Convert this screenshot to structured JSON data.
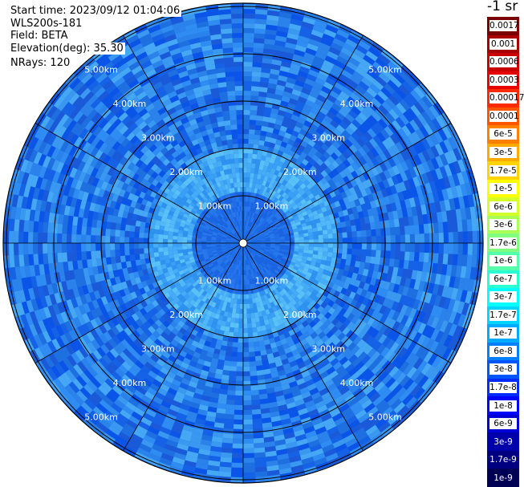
{
  "header": {
    "start_time": "Start time: 2023/09/12 01:04:06",
    "instrument": "WLS200s-181",
    "field": "Field: BETA",
    "elevation": "Elevation(deg): 35.30",
    "nrays": "NRays: 120"
  },
  "plot": {
    "range_labels": [
      "1.00km",
      "2.00km",
      "3.00km",
      "4.00km",
      "5.00km"
    ],
    "background_color": "#1e6fe0"
  },
  "colorbar": {
    "unit": "-1 sr",
    "entries": [
      {
        "label": "0.0017",
        "color": "#7a0000"
      },
      {
        "label": "0.001",
        "color": "#a80000"
      },
      {
        "label": "0.0006",
        "color": "#c80000"
      },
      {
        "label": "0.0003",
        "color": "#e80000"
      },
      {
        "label": "0.00017",
        "color": "#ff2a00"
      },
      {
        "label": "0.0001",
        "color": "#ff5500"
      },
      {
        "label": "6e-5",
        "color": "#ff8000"
      },
      {
        "label": "3e-5",
        "color": "#ffaa00"
      },
      {
        "label": "1.7e-5",
        "color": "#ffd400"
      },
      {
        "label": "1e-5",
        "color": "#ffff00"
      },
      {
        "label": "6e-6",
        "color": "#d4ff2a"
      },
      {
        "label": "3e-6",
        "color": "#aaff55"
      },
      {
        "label": "1.7e-6",
        "color": "#80ff80"
      },
      {
        "label": "1e-6",
        "color": "#55ffaa"
      },
      {
        "label": "6e-7",
        "color": "#2affd4"
      },
      {
        "label": "3e-7",
        "color": "#00ffff"
      },
      {
        "label": "1.7e-7",
        "color": "#00d4ff"
      },
      {
        "label": "1e-7",
        "color": "#00aaff"
      },
      {
        "label": "6e-8",
        "color": "#0080ff"
      },
      {
        "label": "3e-8",
        "color": "#0055ff"
      },
      {
        "label": "1.7e-8",
        "color": "#002aff"
      },
      {
        "label": "1e-8",
        "color": "#0000ff"
      },
      {
        "label": "6e-9",
        "color": "#0000d4"
      },
      {
        "label": "3e-9",
        "color": "#0000aa"
      },
      {
        "label": "1.7e-9",
        "color": "#000080"
      },
      {
        "label": "1e-9",
        "color": "#000055"
      }
    ]
  }
}
